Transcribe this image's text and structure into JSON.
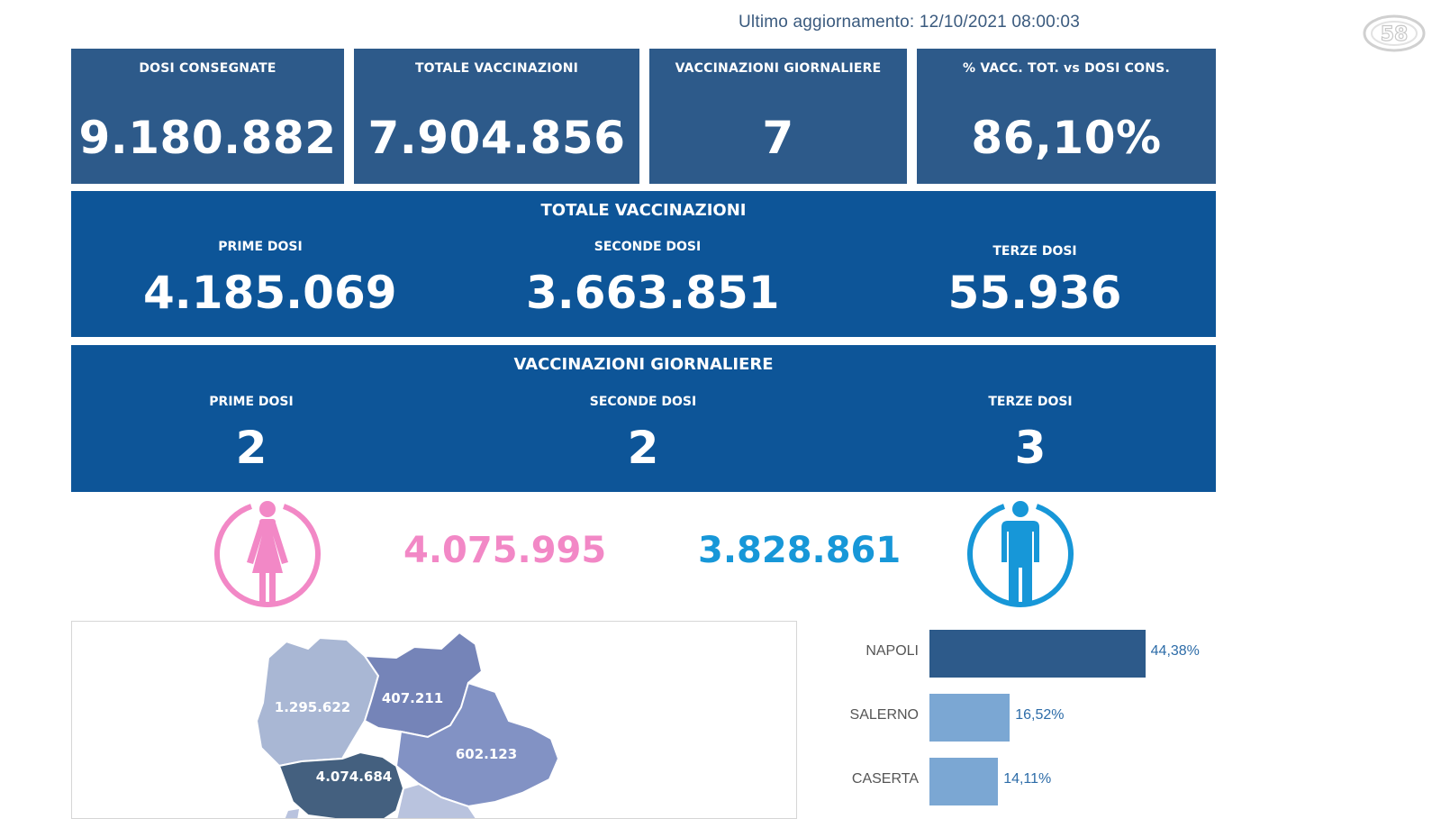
{
  "header": {
    "last_update": "Ultimo aggiornamento: 12/10/2021  08:00:03",
    "logo_text": "58"
  },
  "kpis": [
    {
      "title": "DOSI  CONSEGNATE",
      "value": "9.180.882"
    },
    {
      "title": "TOTALE VACCINAZIONI",
      "value": "7.904.856"
    },
    {
      "title": "VACCINAZIONI GIORNALIERE",
      "value": "7"
    },
    {
      "title": "% VACC. TOT. vs DOSI CONS.",
      "value": "86,10%"
    }
  ],
  "total": {
    "title": "TOTALE VACCINAZIONI",
    "first_label": "PRIME DOSI",
    "first_value": "4.185.069",
    "second_label": "SECONDE DOSI",
    "second_value": "3.663.851",
    "third_label": "TERZE DOSI",
    "third_value": "55.936"
  },
  "daily": {
    "title": "VACCINAZIONI GIORNALIERE",
    "first_label": "PRIME DOSI",
    "first_value": "2",
    "second_label": "SECONDE DOSI",
    "second_value": "2",
    "third_label": "TERZE DOSI",
    "third_value": "3"
  },
  "gender": {
    "female_icon": "female-person-icon",
    "female_value": "4.075.995",
    "female_color": "#f288c6",
    "male_icon": "male-person-icon",
    "male_value": "3.828.861",
    "male_color": "#1797d8"
  },
  "map": {
    "province_values": [
      "1.295.622",
      "407.211",
      "602.123",
      "4.074.684"
    ]
  },
  "provinces_chart": {
    "bars": [
      {
        "label": "NAPOLI",
        "pct": "44,38%",
        "value": 44.38,
        "color": "#2d5a8a"
      },
      {
        "label": "SALERNO",
        "pct": "16,52%",
        "value": 16.52,
        "color": "#7ba7d3"
      },
      {
        "label": "CASERTA",
        "pct": "14,11%",
        "value": 14.11,
        "color": "#7ba7d3"
      }
    ]
  }
}
